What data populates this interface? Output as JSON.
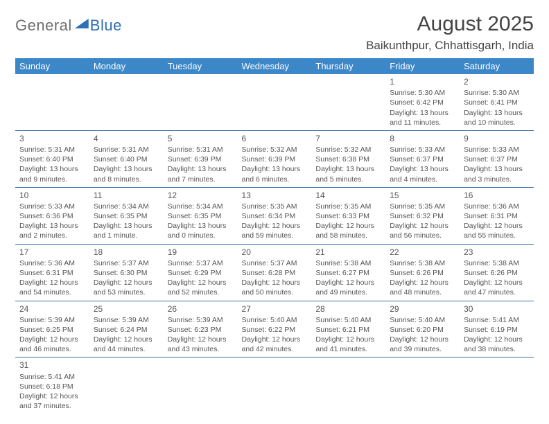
{
  "logo": {
    "part1": "General",
    "part2": "Blue"
  },
  "title": "August 2025",
  "location": "Baikunthpur, Chhattisgarh, India",
  "header_bg": "#3b87c8",
  "header_fg": "#ffffff",
  "border_color": "#3b6fa8",
  "text_color": "#555555",
  "weekdays": [
    "Sunday",
    "Monday",
    "Tuesday",
    "Wednesday",
    "Thursday",
    "Friday",
    "Saturday"
  ],
  "weeks": [
    [
      null,
      null,
      null,
      null,
      null,
      {
        "n": "1",
        "sr": "Sunrise: 5:30 AM",
        "ss": "Sunset: 6:42 PM",
        "dl": "Daylight: 13 hours and 11 minutes."
      },
      {
        "n": "2",
        "sr": "Sunrise: 5:30 AM",
        "ss": "Sunset: 6:41 PM",
        "dl": "Daylight: 13 hours and 10 minutes."
      }
    ],
    [
      {
        "n": "3",
        "sr": "Sunrise: 5:31 AM",
        "ss": "Sunset: 6:40 PM",
        "dl": "Daylight: 13 hours and 9 minutes."
      },
      {
        "n": "4",
        "sr": "Sunrise: 5:31 AM",
        "ss": "Sunset: 6:40 PM",
        "dl": "Daylight: 13 hours and 8 minutes."
      },
      {
        "n": "5",
        "sr": "Sunrise: 5:31 AM",
        "ss": "Sunset: 6:39 PM",
        "dl": "Daylight: 13 hours and 7 minutes."
      },
      {
        "n": "6",
        "sr": "Sunrise: 5:32 AM",
        "ss": "Sunset: 6:39 PM",
        "dl": "Daylight: 13 hours and 6 minutes."
      },
      {
        "n": "7",
        "sr": "Sunrise: 5:32 AM",
        "ss": "Sunset: 6:38 PM",
        "dl": "Daylight: 13 hours and 5 minutes."
      },
      {
        "n": "8",
        "sr": "Sunrise: 5:33 AM",
        "ss": "Sunset: 6:37 PM",
        "dl": "Daylight: 13 hours and 4 minutes."
      },
      {
        "n": "9",
        "sr": "Sunrise: 5:33 AM",
        "ss": "Sunset: 6:37 PM",
        "dl": "Daylight: 13 hours and 3 minutes."
      }
    ],
    [
      {
        "n": "10",
        "sr": "Sunrise: 5:33 AM",
        "ss": "Sunset: 6:36 PM",
        "dl": "Daylight: 13 hours and 2 minutes."
      },
      {
        "n": "11",
        "sr": "Sunrise: 5:34 AM",
        "ss": "Sunset: 6:35 PM",
        "dl": "Daylight: 13 hours and 1 minute."
      },
      {
        "n": "12",
        "sr": "Sunrise: 5:34 AM",
        "ss": "Sunset: 6:35 PM",
        "dl": "Daylight: 13 hours and 0 minutes."
      },
      {
        "n": "13",
        "sr": "Sunrise: 5:35 AM",
        "ss": "Sunset: 6:34 PM",
        "dl": "Daylight: 12 hours and 59 minutes."
      },
      {
        "n": "14",
        "sr": "Sunrise: 5:35 AM",
        "ss": "Sunset: 6:33 PM",
        "dl": "Daylight: 12 hours and 58 minutes."
      },
      {
        "n": "15",
        "sr": "Sunrise: 5:35 AM",
        "ss": "Sunset: 6:32 PM",
        "dl": "Daylight: 12 hours and 56 minutes."
      },
      {
        "n": "16",
        "sr": "Sunrise: 5:36 AM",
        "ss": "Sunset: 6:31 PM",
        "dl": "Daylight: 12 hours and 55 minutes."
      }
    ],
    [
      {
        "n": "17",
        "sr": "Sunrise: 5:36 AM",
        "ss": "Sunset: 6:31 PM",
        "dl": "Daylight: 12 hours and 54 minutes."
      },
      {
        "n": "18",
        "sr": "Sunrise: 5:37 AM",
        "ss": "Sunset: 6:30 PM",
        "dl": "Daylight: 12 hours and 53 minutes."
      },
      {
        "n": "19",
        "sr": "Sunrise: 5:37 AM",
        "ss": "Sunset: 6:29 PM",
        "dl": "Daylight: 12 hours and 52 minutes."
      },
      {
        "n": "20",
        "sr": "Sunrise: 5:37 AM",
        "ss": "Sunset: 6:28 PM",
        "dl": "Daylight: 12 hours and 50 minutes."
      },
      {
        "n": "21",
        "sr": "Sunrise: 5:38 AM",
        "ss": "Sunset: 6:27 PM",
        "dl": "Daylight: 12 hours and 49 minutes."
      },
      {
        "n": "22",
        "sr": "Sunrise: 5:38 AM",
        "ss": "Sunset: 6:26 PM",
        "dl": "Daylight: 12 hours and 48 minutes."
      },
      {
        "n": "23",
        "sr": "Sunrise: 5:38 AM",
        "ss": "Sunset: 6:26 PM",
        "dl": "Daylight: 12 hours and 47 minutes."
      }
    ],
    [
      {
        "n": "24",
        "sr": "Sunrise: 5:39 AM",
        "ss": "Sunset: 6:25 PM",
        "dl": "Daylight: 12 hours and 46 minutes."
      },
      {
        "n": "25",
        "sr": "Sunrise: 5:39 AM",
        "ss": "Sunset: 6:24 PM",
        "dl": "Daylight: 12 hours and 44 minutes."
      },
      {
        "n": "26",
        "sr": "Sunrise: 5:39 AM",
        "ss": "Sunset: 6:23 PM",
        "dl": "Daylight: 12 hours and 43 minutes."
      },
      {
        "n": "27",
        "sr": "Sunrise: 5:40 AM",
        "ss": "Sunset: 6:22 PM",
        "dl": "Daylight: 12 hours and 42 minutes."
      },
      {
        "n": "28",
        "sr": "Sunrise: 5:40 AM",
        "ss": "Sunset: 6:21 PM",
        "dl": "Daylight: 12 hours and 41 minutes."
      },
      {
        "n": "29",
        "sr": "Sunrise: 5:40 AM",
        "ss": "Sunset: 6:20 PM",
        "dl": "Daylight: 12 hours and 39 minutes."
      },
      {
        "n": "30",
        "sr": "Sunrise: 5:41 AM",
        "ss": "Sunset: 6:19 PM",
        "dl": "Daylight: 12 hours and 38 minutes."
      }
    ],
    [
      {
        "n": "31",
        "sr": "Sunrise: 5:41 AM",
        "ss": "Sunset: 6:18 PM",
        "dl": "Daylight: 12 hours and 37 minutes."
      },
      null,
      null,
      null,
      null,
      null,
      null
    ]
  ]
}
